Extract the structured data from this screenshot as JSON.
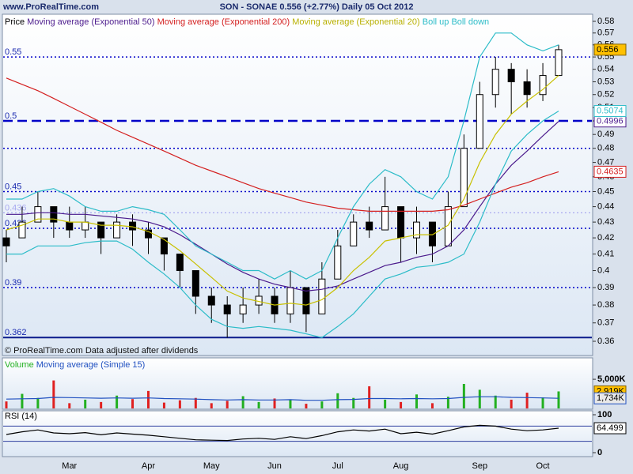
{
  "header": {
    "site": "www.ProRealTime.com",
    "title": "SON - SONAE   0.556 (+2.77%)   Daily  05 Oct 2012",
    "note": "© ProRealTime.com  Data adjusted after dividends"
  },
  "chart_data": [
    {
      "type": "candlestick",
      "log_scale": true,
      "ylim": [
        0.36,
        0.58
      ],
      "yticks": [
        0.36,
        0.37,
        0.38,
        0.39,
        0.4,
        0.41,
        0.42,
        0.43,
        0.44,
        0.45,
        0.46,
        0.47,
        0.48,
        0.49,
        0.5,
        0.51,
        0.52,
        0.53,
        0.54,
        0.55,
        0.56,
        0.57,
        0.58
      ],
      "hlines": [
        {
          "value": 0.55,
          "style": "dotted",
          "labeled": true
        },
        {
          "value": 0.5,
          "style": "dashed",
          "labeled": true
        },
        {
          "value": 0.48,
          "style": "dotted",
          "labeled": false
        },
        {
          "value": 0.45,
          "style": "dotted",
          "labeled": true
        },
        {
          "value": 0.436,
          "style": "light",
          "labeled": true
        },
        {
          "value": 0.426,
          "style": "dotted",
          "labeled": true
        },
        {
          "value": 0.39,
          "style": "dotted",
          "labeled": true
        },
        {
          "value": 0.362,
          "style": "solid",
          "labeled": true
        }
      ],
      "ohlc": {
        "name": "Price",
        "color": "#000000",
        "box_color": "#ffc000",
        "open": [
          0.42,
          0.42,
          0.43,
          0.44,
          0.43,
          0.425,
          0.43,
          0.42,
          0.43,
          0.425,
          0.42,
          0.41,
          0.4,
          0.385,
          0.38,
          0.375,
          0.38,
          0.385,
          0.375,
          0.39,
          0.375,
          0.395,
          0.415,
          0.43,
          0.425,
          0.44,
          0.42,
          0.43,
          0.415,
          0.44,
          0.48,
          0.52,
          0.54,
          0.53,
          0.52,
          0.535
        ],
        "high": [
          0.425,
          0.44,
          0.45,
          0.44,
          0.44,
          0.44,
          0.43,
          0.435,
          0.435,
          0.43,
          0.42,
          0.41,
          0.395,
          0.39,
          0.385,
          0.39,
          0.395,
          0.39,
          0.4,
          0.385,
          0.405,
          0.425,
          0.435,
          0.44,
          0.46,
          0.44,
          0.44,
          0.43,
          0.45,
          0.49,
          0.53,
          0.55,
          0.545,
          0.54,
          0.545,
          0.56
        ],
        "low": [
          0.405,
          0.42,
          0.43,
          0.42,
          0.42,
          0.42,
          0.41,
          0.42,
          0.415,
          0.41,
          0.4,
          0.39,
          0.375,
          0.37,
          0.362,
          0.37,
          0.375,
          0.37,
          0.37,
          0.365,
          0.38,
          0.395,
          0.415,
          0.42,
          0.43,
          0.405,
          0.41,
          0.405,
          0.425,
          0.44,
          0.48,
          0.51,
          0.505,
          0.51,
          0.515,
          0.535
        ],
        "close": [
          0.415,
          0.43,
          0.44,
          0.43,
          0.425,
          0.43,
          0.42,
          0.43,
          0.425,
          0.42,
          0.41,
          0.4,
          0.385,
          0.38,
          0.375,
          0.38,
          0.385,
          0.375,
          0.39,
          0.375,
          0.395,
          0.415,
          0.43,
          0.425,
          0.44,
          0.42,
          0.43,
          0.415,
          0.44,
          0.48,
          0.52,
          0.54,
          0.53,
          0.52,
          0.535,
          0.556
        ]
      },
      "series": [
        {
          "name": "Moving average (Exponential 50)",
          "color": "#4b1a8c",
          "box": true,
          "values": [
            0.435,
            0.435,
            0.436,
            0.436,
            0.435,
            0.435,
            0.434,
            0.433,
            0.432,
            0.43,
            0.427,
            0.422,
            0.416,
            0.41,
            0.404,
            0.399,
            0.395,
            0.392,
            0.39,
            0.388,
            0.389,
            0.391,
            0.395,
            0.399,
            0.403,
            0.405,
            0.408,
            0.41,
            0.415,
            0.425,
            0.44,
            0.455,
            0.468,
            0.478,
            0.489,
            0.4996
          ]
        },
        {
          "name": "Moving average (Exponential 200)",
          "color": "#d42020",
          "box": true,
          "values": [
            0.533,
            0.528,
            0.523,
            0.517,
            0.511,
            0.505,
            0.499,
            0.493,
            0.488,
            0.483,
            0.478,
            0.473,
            0.468,
            0.464,
            0.46,
            0.456,
            0.452,
            0.449,
            0.446,
            0.443,
            0.441,
            0.439,
            0.438,
            0.437,
            0.437,
            0.437,
            0.437,
            0.437,
            0.438,
            0.441,
            0.445,
            0.449,
            0.453,
            0.456,
            0.46,
            0.4635
          ]
        },
        {
          "name": "Moving average (Exponential 20)",
          "color": "#c8c000",
          "box": false,
          "values": [
            0.425,
            0.428,
            0.432,
            0.432,
            0.43,
            0.43,
            0.428,
            0.428,
            0.427,
            0.424,
            0.419,
            0.412,
            0.404,
            0.396,
            0.388,
            0.384,
            0.382,
            0.38,
            0.381,
            0.38,
            0.383,
            0.39,
            0.4,
            0.408,
            0.418,
            0.42,
            0.422,
            0.422,
            0.428,
            0.445,
            0.47,
            0.49,
            0.505,
            0.515,
            0.524,
            0.535
          ]
        },
        {
          "name": "Boll up",
          "color": "#2cbcc8",
          "box": false,
          "values": [
            0.445,
            0.445,
            0.45,
            0.452,
            0.447,
            0.44,
            0.437,
            0.437,
            0.44,
            0.438,
            0.435,
            0.425,
            0.415,
            0.41,
            0.405,
            0.4,
            0.4,
            0.395,
            0.4,
            0.395,
            0.4,
            0.42,
            0.44,
            0.455,
            0.465,
            0.46,
            0.45,
            0.445,
            0.46,
            0.5,
            0.55,
            0.57,
            0.57,
            0.56,
            0.555,
            0.56
          ]
        },
        {
          "name": "Boll down",
          "color": "#2cbcc8",
          "box": true,
          "values": [
            0.41,
            0.41,
            0.415,
            0.415,
            0.415,
            0.417,
            0.418,
            0.418,
            0.413,
            0.405,
            0.398,
            0.39,
            0.38,
            0.372,
            0.368,
            0.367,
            0.368,
            0.367,
            0.366,
            0.364,
            0.362,
            0.368,
            0.375,
            0.385,
            0.395,
            0.398,
            0.402,
            0.403,
            0.405,
            0.41,
            0.43,
            0.455,
            0.478,
            0.49,
            0.5,
            0.5074
          ]
        }
      ]
    },
    {
      "type": "bar",
      "ylim": [
        0,
        8400000
      ],
      "yticks": [
        {
          "value": 5000000,
          "label": "5,000K"
        }
      ],
      "series": [
        {
          "name": "Volume",
          "color": "#22b020",
          "down_color": "#e02020",
          "box_color": "#ffc000",
          "values": [
            1200000,
            2500000,
            1800000,
            4800000,
            900000,
            1500000,
            1100000,
            2200000,
            1600000,
            3000000,
            1000000,
            1400000,
            1800000,
            900000,
            1300000,
            2100000,
            1100000,
            1700000,
            1500000,
            800000,
            1200000,
            2600000,
            1800000,
            3800000,
            1500000,
            1100000,
            2400000,
            900000,
            2000000,
            4200000,
            3200000,
            2200000,
            1500000,
            2700000,
            1900000,
            2919000
          ],
          "value_labels": [
            null,
            null,
            null,
            null,
            null,
            null,
            null,
            null,
            null,
            null,
            null,
            null,
            null,
            null,
            null,
            null,
            null,
            null,
            null,
            null,
            null,
            null,
            null,
            null,
            null,
            null,
            null,
            null,
            null,
            null,
            null,
            null,
            null,
            null,
            null,
            "2,919K"
          ]
        },
        {
          "name": "Moving average (Simple 15)",
          "color": "#2050c0",
          "box_color": "#e8e8e8",
          "values": [
            1600000,
            1650000,
            1700000,
            1900000,
            1850000,
            1800000,
            1750000,
            1800000,
            1750000,
            1800000,
            1700000,
            1650000,
            1600000,
            1500000,
            1450000,
            1500000,
            1450000,
            1450000,
            1500000,
            1400000,
            1400000,
            1500000,
            1550000,
            1700000,
            1700000,
            1650000,
            1700000,
            1650000,
            1700000,
            1900000,
            2000000,
            2000000,
            1900000,
            1850000,
            1800000,
            1734000
          ],
          "value_labels": [
            null,
            null,
            null,
            null,
            null,
            null,
            null,
            null,
            null,
            null,
            null,
            null,
            null,
            null,
            null,
            null,
            null,
            null,
            null,
            null,
            null,
            null,
            null,
            null,
            null,
            null,
            null,
            null,
            null,
            null,
            null,
            null,
            null,
            null,
            null,
            "1,734K"
          ]
        }
      ]
    },
    {
      "type": "line",
      "ylim": [
        0,
        100
      ],
      "yticks": [
        0,
        100
      ],
      "hlines": [
        70,
        30
      ],
      "categories": [
        null,
        null,
        null,
        null,
        "Mar",
        null,
        null,
        null,
        null,
        "Apr",
        null,
        null,
        null,
        "May",
        null,
        null,
        null,
        "Jun",
        null,
        null,
        null,
        "Jul",
        null,
        null,
        null,
        "Aug",
        null,
        null,
        null,
        null,
        "Sep",
        null,
        null,
        null,
        "Oct",
        null
      ],
      "series": [
        {
          "name": "RSI (14)",
          "color": "#000000",
          "box_color": "#ffffff",
          "values": [
            48,
            55,
            60,
            52,
            50,
            53,
            47,
            52,
            49,
            46,
            42,
            38,
            34,
            33,
            32,
            36,
            38,
            35,
            42,
            37,
            45,
            55,
            60,
            57,
            62,
            50,
            54,
            49,
            58,
            68,
            72,
            70,
            62,
            58,
            60,
            64.499
          ]
        }
      ]
    }
  ]
}
